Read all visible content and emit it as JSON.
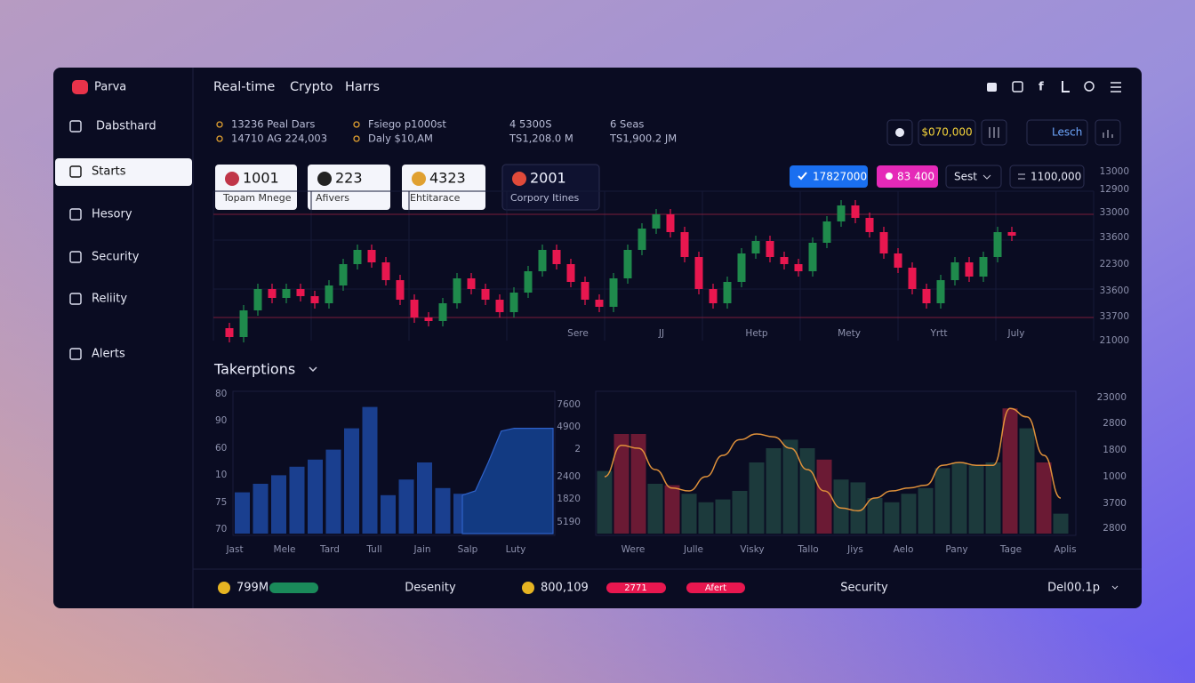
{
  "app": {
    "name": "Parva"
  },
  "sidebar": [
    "Dabsthard",
    "Starts",
    "Hesory",
    "Security",
    "Reliity",
    "Alerts"
  ],
  "topnav": [
    "Real-time",
    "Crypto",
    "Harrs"
  ],
  "stats": [
    [
      "13236 Peal Dars",
      "14710 AG 224,003"
    ],
    [
      "Fsiego p1000st",
      "Daly $10,AM"
    ],
    [
      "4 5300S",
      "TS1,208.0 M"
    ],
    [
      "6 Seas",
      "TS1,900.2 JM"
    ]
  ],
  "toolbar": [
    "$070,000",
    "Lesch"
  ],
  "cards": [
    {
      "value": "1001",
      "label": "Topam Mnege"
    },
    {
      "value": "223",
      "label": "Afivers"
    },
    {
      "value": "4323",
      "label": "Ehtitarace"
    },
    {
      "value": "2001",
      "label": "Corpory Itines"
    }
  ],
  "chips": [
    "17827000",
    "83 400",
    "Sest",
    "1100,000"
  ],
  "candle_chart": {
    "type": "candlestick",
    "ylim": [
      0,
      100
    ],
    "ylabels": [
      "13000",
      "12900",
      "33000",
      "33600",
      "22300",
      "33600",
      "33700",
      "21000"
    ],
    "xlabels": [
      "Sere",
      "JJ",
      "Hetp",
      "Mety",
      "Yrtt",
      "July"
    ],
    "reference_lines": [
      72,
      14
    ],
    "up_color": "#1f8a4c",
    "down_color": "#e8174f",
    "open": [
      8,
      3,
      18,
      30,
      25,
      30,
      26,
      22,
      32,
      44,
      52,
      45,
      35,
      24,
      14,
      12,
      22,
      36,
      30,
      24,
      17,
      28,
      40,
      52,
      44,
      34,
      24,
      20,
      36,
      52,
      64,
      72,
      62,
      48,
      30,
      22,
      34,
      50,
      57,
      48,
      44,
      40,
      56,
      68,
      77,
      70,
      62,
      50,
      42,
      30,
      22,
      35,
      45,
      37,
      48,
      62
    ],
    "close": [
      3,
      18,
      30,
      25,
      30,
      26,
      22,
      32,
      44,
      52,
      45,
      35,
      24,
      14,
      12,
      22,
      36,
      30,
      24,
      17,
      28,
      40,
      52,
      44,
      34,
      24,
      20,
      36,
      52,
      64,
      72,
      62,
      48,
      30,
      22,
      34,
      50,
      57,
      48,
      44,
      40,
      56,
      68,
      77,
      70,
      62,
      50,
      42,
      30,
      22,
      35,
      45,
      37,
      48,
      62,
      60
    ],
    "high": [
      11,
      21,
      33,
      33,
      33,
      33,
      29,
      35,
      47,
      55,
      55,
      48,
      38,
      27,
      17,
      25,
      39,
      39,
      33,
      27,
      31,
      43,
      55,
      55,
      47,
      37,
      27,
      39,
      55,
      67,
      75,
      75,
      65,
      51,
      33,
      37,
      53,
      60,
      60,
      51,
      47,
      59,
      71,
      80,
      80,
      73,
      65,
      53,
      45,
      33,
      38,
      48,
      48,
      51,
      65,
      65
    ],
    "low": [
      0,
      0,
      15,
      22,
      22,
      23,
      19,
      19,
      29,
      41,
      42,
      32,
      21,
      11,
      9,
      9,
      19,
      27,
      21,
      14,
      14,
      25,
      37,
      41,
      31,
      21,
      17,
      17,
      33,
      49,
      61,
      59,
      45,
      27,
      19,
      19,
      31,
      47,
      45,
      41,
      37,
      37,
      53,
      65,
      67,
      59,
      47,
      39,
      27,
      19,
      19,
      32,
      34,
      34,
      45,
      57
    ]
  },
  "section_title": "Takerptions",
  "bar_chart": {
    "type": "bar",
    "ylim": [
      0,
      100
    ],
    "color": "#1a3f8f",
    "area_color": "#123a82",
    "ylabels": [
      "80",
      "90",
      "60",
      "10",
      "75",
      "70"
    ],
    "y2labels": [
      "7600",
      "4900",
      "2",
      "2400",
      "1820",
      "5190"
    ],
    "xlabels": [
      "Jast",
      "Mele",
      "Tard",
      "Tull",
      "Jain",
      "Salp",
      "Luty"
    ],
    "values": [
      29,
      35,
      41,
      47,
      52,
      59,
      74,
      89,
      27,
      38,
      50,
      32,
      28,
      27
    ],
    "area": [
      27,
      30,
      50,
      72,
      74,
      74,
      74,
      74
    ]
  },
  "combo_chart": {
    "type": "bar-line",
    "ylim": [
      0,
      100
    ],
    "line_color": "#e0913a",
    "ylabels": [
      "23000",
      "2800",
      "1800",
      "1000",
      "3700",
      "2800"
    ],
    "xlabels": [
      "Were",
      "Julle",
      "Visky",
      "Tallo",
      "Jiys",
      "Aelo",
      "Pany",
      "Tage",
      "Aplis"
    ],
    "values": [
      44,
      70,
      70,
      35,
      34,
      28,
      22,
      24,
      30,
      50,
      60,
      66,
      60,
      52,
      38,
      36,
      25,
      22,
      28,
      32,
      46,
      50,
      48,
      50,
      88,
      74,
      50,
      14
    ],
    "bar_colors": [
      "#1c3a3c",
      "#6b1a34",
      "#6b1a34",
      "#1c3a3c",
      "#6b1a34",
      "#1c3a3c",
      "#1c3a3c",
      "#1c3a3c",
      "#1c3a3c",
      "#1c3a3c",
      "#1c3a3c",
      "#1c3a3c",
      "#1c3a3c",
      "#6b1a34",
      "#1c3a3c",
      "#1c3a3c",
      "#1c3a3c",
      "#1c3a3c",
      "#1c3a3c",
      "#1c3a3c",
      "#1c3a3c",
      "#1c3a3c",
      "#1c3a3c",
      "#1c3a3c",
      "#6b1a34",
      "#1c3a3c",
      "#6b1a34",
      "#1c3a3c"
    ],
    "line": [
      40,
      62,
      60,
      45,
      32,
      30,
      40,
      55,
      66,
      70,
      68,
      60,
      45,
      30,
      18,
      16,
      25,
      30,
      32,
      34,
      48,
      50,
      48,
      48,
      88,
      82,
      55,
      25
    ]
  },
  "footer": [
    "799M",
    "Desenity",
    "800,109",
    "2771",
    "Afert",
    "Security",
    "Del00.1p"
  ]
}
